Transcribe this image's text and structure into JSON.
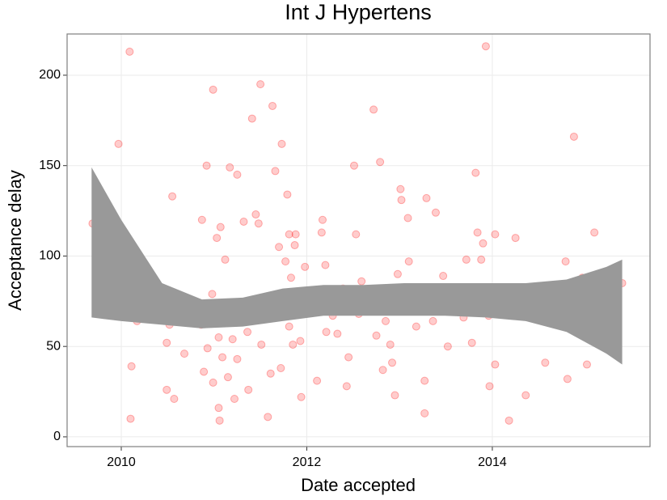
{
  "chart_data": {
    "type": "scatter",
    "title": "Int J Hypertens",
    "x_label": "Date accepted",
    "y_label": "Acceptance delay",
    "xlim": [
      2009.416,
      2015.7
    ],
    "ylim": [
      -5.4,
      222.8
    ],
    "xticks": [
      2010,
      2012,
      2014
    ],
    "yticks": [
      0,
      50,
      100,
      150,
      200
    ],
    "grid": true,
    "point_color": "#ff0000",
    "point_alpha": 0.2,
    "x": [
      2009.69,
      2009.97,
      2010.09,
      2010.11,
      2010.1,
      2010.14,
      2010.17,
      2010.29,
      2010.49,
      2010.49,
      2010.52,
      2010.55,
      2010.57,
      2010.68,
      2010.86,
      2010.87,
      2010.89,
      2010.92,
      2010.93,
      2010.98,
      2010.99,
      2010.99,
      2011.03,
      2011.05,
      2011.05,
      2011.06,
      2011.07,
      2011.09,
      2011.12,
      2011.15,
      2011.17,
      2011.2,
      2011.22,
      2011.25,
      2011.25,
      2011.27,
      2011.31,
      2011.32,
      2011.36,
      2011.37,
      2011.41,
      2011.45,
      2011.48,
      2011.5,
      2011.51,
      2011.54,
      2011.58,
      2011.61,
      2011.63,
      2011.66,
      2011.66,
      2011.7,
      2011.72,
      2011.73,
      2011.77,
      2011.79,
      2011.81,
      2011.81,
      2011.83,
      2011.85,
      2011.87,
      2011.88,
      2011.9,
      2011.93,
      2011.94,
      2011.98,
      2012.03,
      2012.11,
      2012.17,
      2012.16,
      2012.2,
      2012.21,
      2012.28,
      2012.33,
      2012.39,
      2012.45,
      2012.43,
      2012.51,
      2012.53,
      2012.56,
      2012.59,
      2012.72,
      2012.75,
      2012.79,
      2012.82,
      2012.85,
      2012.9,
      2012.92,
      2012.95,
      2012.98,
      2013.01,
      2013.02,
      2013.05,
      2013.09,
      2013.1,
      2013.12,
      2013.15,
      2013.18,
      2013.27,
      2013.27,
      2013.29,
      2013.36,
      2013.39,
      2013.43,
      2013.47,
      2013.52,
      2013.61,
      2013.69,
      2013.72,
      2013.78,
      2013.82,
      2013.84,
      2013.88,
      2013.9,
      2013.93,
      2013.96,
      2013.97,
      2014.03,
      2014.03,
      2014.18,
      2014.25,
      2014.36,
      2014.51,
      2014.57,
      2014.65,
      2014.69,
      2014.79,
      2014.81,
      2014.88,
      2014.9,
      2014.97,
      2015.02,
      2015.1,
      2015.14,
      2015.15,
      2015.15,
      2015.35,
      2015.4
    ],
    "values": [
      118,
      162,
      213,
      39,
      10,
      71,
      64,
      80,
      52,
      26,
      62,
      133,
      21,
      46,
      62,
      120,
      36,
      150,
      49,
      79,
      192,
      30,
      110,
      55,
      16,
      9,
      116,
      44,
      98,
      33,
      149,
      54,
      21,
      145,
      43,
      69,
      73,
      119,
      58,
      26,
      176,
      123,
      118,
      195,
      51,
      68,
      11,
      35,
      183,
      76,
      147,
      105,
      38,
      162,
      97,
      134,
      61,
      112,
      88,
      51,
      106,
      112,
      76,
      53,
      22,
      94,
      80,
      31,
      120,
      113,
      95,
      58,
      67,
      57,
      82,
      44,
      28,
      150,
      112,
      68,
      86,
      181,
      56,
      152,
      37,
      64,
      51,
      41,
      23,
      90,
      137,
      131,
      80,
      121,
      97,
      78,
      73,
      61,
      31,
      13,
      132,
      64,
      124,
      78,
      89,
      50,
      70,
      66,
      98,
      52,
      146,
      113,
      98,
      107,
      216,
      67,
      28,
      40,
      112,
      9,
      110,
      23,
      69,
      41,
      72,
      79,
      97,
      32,
      166,
      64,
      88,
      40,
      113,
      65,
      59,
      68,
      90,
      85
    ],
    "band": {
      "color": "#999999",
      "x": [
        2009.68,
        2010,
        2010.44,
        2010.87,
        2011.31,
        2011.74,
        2012.18,
        2012.61,
        2013.05,
        2013.49,
        2013.93,
        2014.36,
        2014.8,
        2015.23,
        2015.4
      ],
      "upper": [
        149,
        120,
        85,
        76,
        77,
        82,
        84,
        84,
        85,
        85,
        85,
        85,
        87,
        94,
        98
      ],
      "lower": [
        66,
        64,
        62,
        60,
        61,
        64,
        67,
        67,
        67,
        67,
        66,
        64,
        58,
        46,
        40
      ]
    }
  }
}
